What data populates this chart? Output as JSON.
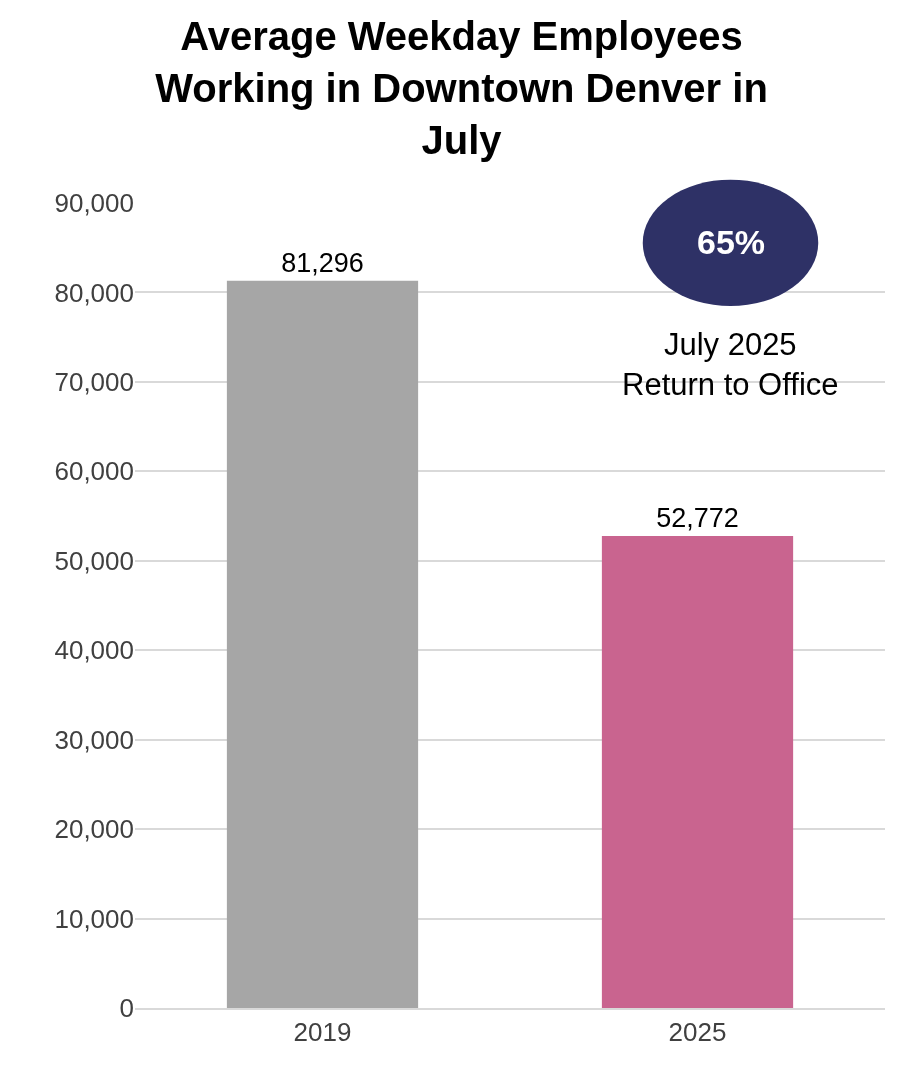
{
  "chart_data": {
    "type": "bar",
    "title": "Average Weekday Employees Working in Downtown Denver in July",
    "categories": [
      "2019",
      "2025"
    ],
    "values": [
      81296,
      52772
    ],
    "colors": [
      "#a6a6a6",
      "#c9648f"
    ],
    "ylim": [
      0,
      90000
    ],
    "yticks": [
      0,
      {
        "value": 10000,
        "label": "10,000"
      },
      {
        "value": 20000,
        "label": "20,000"
      },
      {
        "value": 30000,
        "label": "30,000"
      },
      {
        "value": 40000,
        "label": "40,000"
      },
      {
        "value": 50000,
        "label": "50,000"
      },
      {
        "value": 60000,
        "label": "60,000"
      },
      {
        "value": 70000,
        "label": "70,000"
      },
      {
        "value": 80000,
        "label": "80,000"
      },
      {
        "value": 90000,
        "label": "90,000"
      }
    ],
    "grid": "y",
    "value_labels": [
      "81,296",
      "52,772"
    ],
    "annotations": [
      "65%",
      "July 2025\nReturn to Office"
    ]
  }
}
